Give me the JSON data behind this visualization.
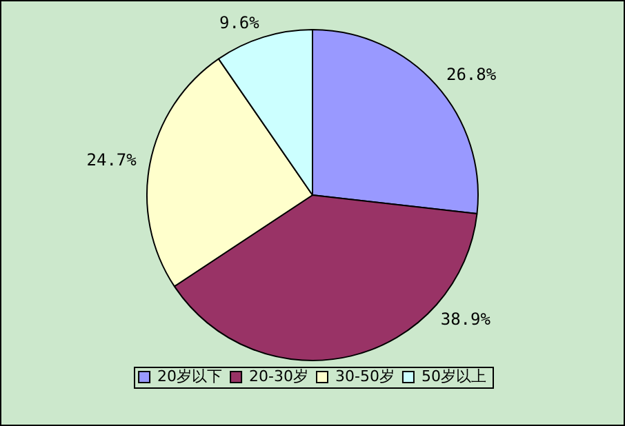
{
  "chart_data": {
    "type": "pie",
    "categories": [
      "20岁以下",
      "20-30岁",
      "30-50岁",
      "50岁以上"
    ],
    "values": [
      26.8,
      38.9,
      24.7,
      9.6
    ],
    "colors": [
      "#9999ff",
      "#993366",
      "#ffffcc",
      "#ccffff"
    ],
    "value_labels": [
      "26.8%",
      "38.9%",
      "24.7%",
      "9.6%"
    ],
    "legend": "bottom"
  }
}
